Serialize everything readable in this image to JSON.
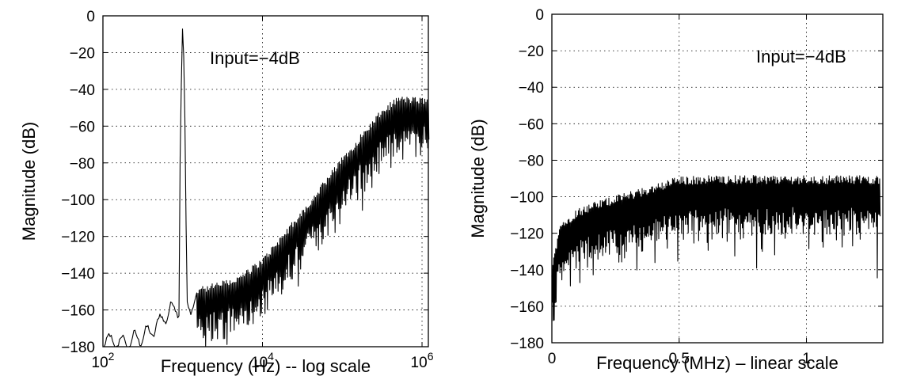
{
  "chart_data": [
    {
      "type": "line",
      "title": "",
      "xlabel": "Frequency (Hz) -- log scale",
      "ylabel": "Magnitude (dB)",
      "xscale": "log",
      "xlim": [
        100,
        1200000
      ],
      "ylim": [
        -180,
        0
      ],
      "grid": true,
      "grid_style": "dotted",
      "x_ticks": [
        {
          "value": 100,
          "base": "10",
          "exp": "2"
        },
        {
          "value": 10000,
          "base": "10",
          "exp": "4"
        },
        {
          "value": 1000000,
          "base": "10",
          "exp": "6"
        }
      ],
      "y_ticks": [
        {
          "value": 0,
          "label": "0"
        },
        {
          "value": -20,
          "label": "−20"
        },
        {
          "value": -40,
          "label": "−40"
        },
        {
          "value": -60,
          "label": "−60"
        },
        {
          "value": -80,
          "label": "−80"
        },
        {
          "value": -100,
          "label": "−100"
        },
        {
          "value": -120,
          "label": "−120"
        },
        {
          "value": -140,
          "label": "−140"
        },
        {
          "value": -160,
          "label": "−160"
        },
        {
          "value": -180,
          "label": "−180"
        }
      ],
      "annotation": "Input=−4dB",
      "series": [
        {
          "color": "#000000",
          "signal_peak": {
            "freq": 1000,
            "magnitude": -4
          },
          "noise_floor": [
            {
              "freq": 100,
              "magnitude": -177
            },
            {
              "freq": 200,
              "magnitude": -178
            },
            {
              "freq": 400,
              "magnitude": -172
            },
            {
              "freq": 700,
              "magnitude": -160
            },
            {
              "freq": 1300,
              "magnitude": -157
            },
            {
              "freq": 2000,
              "magnitude": -155
            },
            {
              "freq": 5000,
              "magnitude": -150
            },
            {
              "freq": 10000,
              "magnitude": -140
            },
            {
              "freq": 30000,
              "magnitude": -115
            },
            {
              "freq": 100000,
              "magnitude": -85
            },
            {
              "freq": 300000,
              "magnitude": -60
            },
            {
              "freq": 500000,
              "magnitude": -52
            },
            {
              "freq": 1200000,
              "magnitude": -53
            }
          ],
          "spread_db": 16
        }
      ]
    },
    {
      "type": "line",
      "title": "",
      "xlabel": "Frequency (MHz) – linear scale",
      "ylabel": "Magnitude (dB)",
      "xscale": "linear",
      "xlim": [
        0,
        1.3
      ],
      "ylim": [
        -180,
        0
      ],
      "grid": true,
      "grid_style": "dotted",
      "x_ticks": [
        {
          "value": 0,
          "label": "0"
        },
        {
          "value": 0.5,
          "label": "0.5"
        },
        {
          "value": 1,
          "label": "1"
        }
      ],
      "y_ticks": [
        {
          "value": 0,
          "label": "0"
        },
        {
          "value": -20,
          "label": "−20"
        },
        {
          "value": -40,
          "label": "−40"
        },
        {
          "value": -60,
          "label": "−60"
        },
        {
          "value": -80,
          "label": "−80"
        },
        {
          "value": -100,
          "label": "−100"
        },
        {
          "value": -120,
          "label": "−120"
        },
        {
          "value": -140,
          "label": "−140"
        },
        {
          "value": -160,
          "label": "−160"
        },
        {
          "value": -180,
          "label": "−180"
        }
      ],
      "annotation": "Input=−4dB",
      "series": [
        {
          "color": "#000000",
          "noise_floor": [
            {
              "freq": 0.0,
              "magnitude": -150
            },
            {
              "freq": 0.03,
              "magnitude": -125
            },
            {
              "freq": 0.1,
              "magnitude": -117
            },
            {
              "freq": 0.2,
              "magnitude": -112
            },
            {
              "freq": 0.3,
              "magnitude": -108
            },
            {
              "freq": 0.4,
              "magnitude": -104
            },
            {
              "freq": 0.48,
              "magnitude": -100
            },
            {
              "freq": 0.6,
              "magnitude": -99
            },
            {
              "freq": 0.8,
              "magnitude": -99
            },
            {
              "freq": 1.0,
              "magnitude": -99
            },
            {
              "freq": 1.3,
              "magnitude": -99
            }
          ],
          "spread_db": 15
        }
      ]
    }
  ]
}
